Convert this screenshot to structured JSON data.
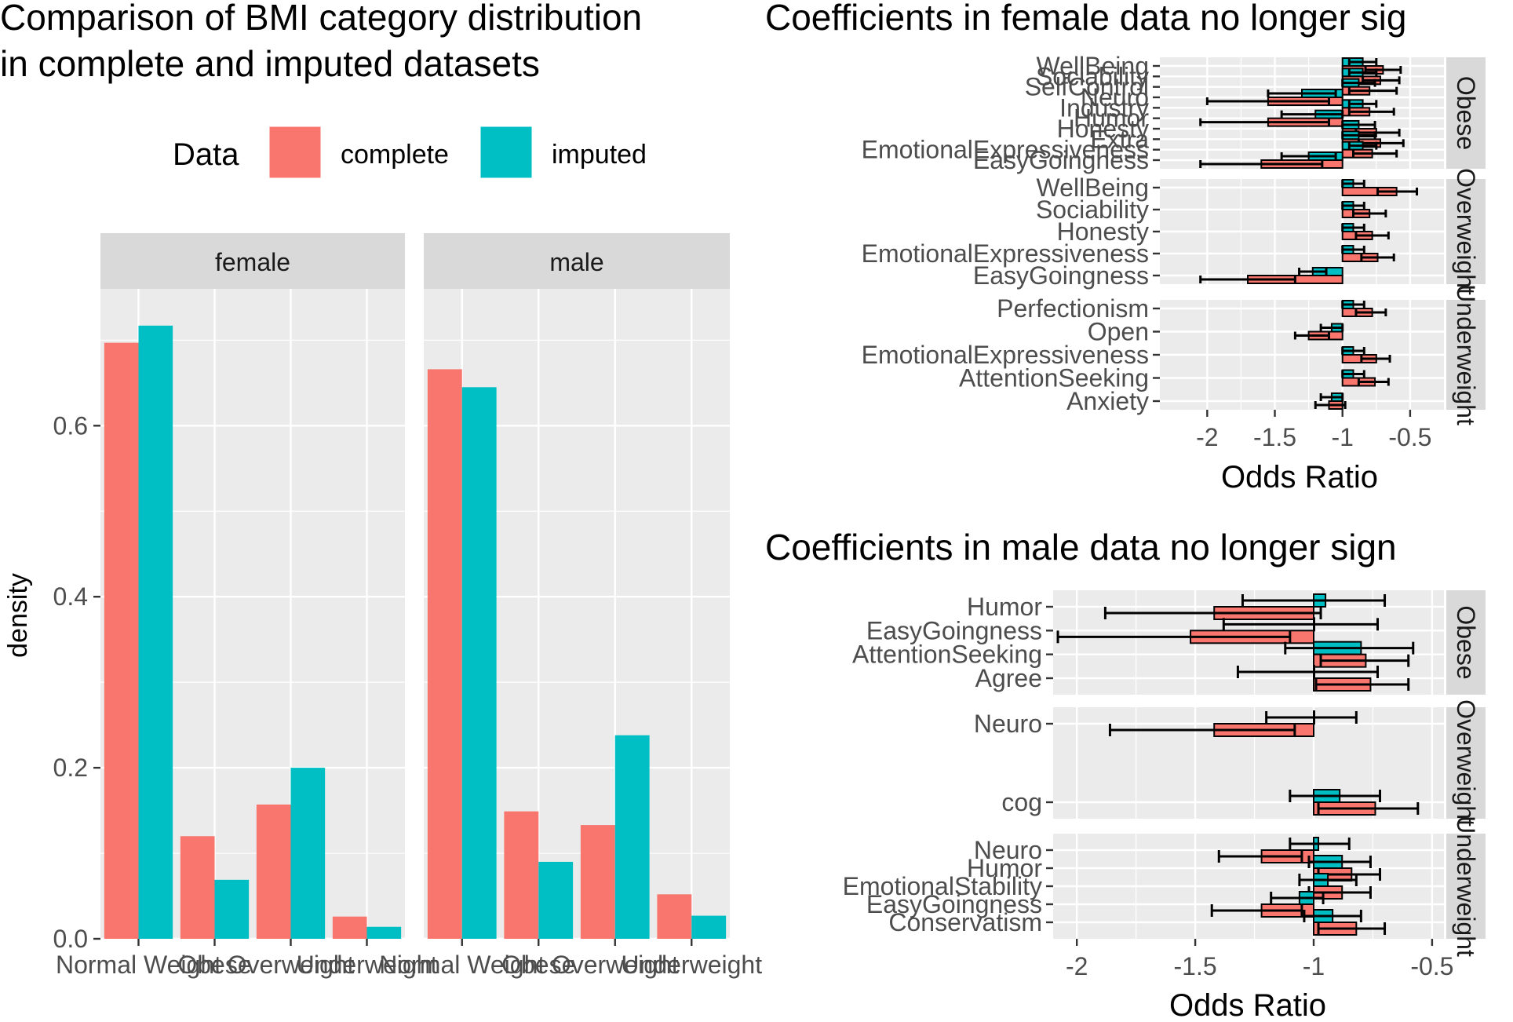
{
  "colors": {
    "complete": "#F8766D",
    "imputed": "#00BFC4",
    "panel_bg": "#EBEBEB",
    "strip_bg": "#D9D9D9",
    "grid": "#FFFFFF",
    "axis_text": "#4D4D4D"
  },
  "chart_data": [
    {
      "type": "bar",
      "title": "Comparison of BMI category distribution in complete and imputed datasets",
      "title_lines": [
        "Comparison of BMI category distribution",
        "in complete and imputed datasets"
      ],
      "xlabel": "",
      "ylabel": "density",
      "legend": {
        "title": "Data",
        "position": "top",
        "entries": [
          "complete",
          "imputed"
        ]
      },
      "facets": [
        "female",
        "male"
      ],
      "categories": [
        "Normal Weight",
        "Obese",
        "Overweight",
        "Underweight"
      ],
      "ylim": [
        0,
        0.76
      ],
      "y_ticks": [
        "0.0",
        "0.2",
        "0.4",
        "0.6"
      ],
      "panels": [
        {
          "facet": "female",
          "series": [
            {
              "name": "complete",
              "values": [
                0.697,
                0.12,
                0.157,
                0.026
              ]
            },
            {
              "name": "imputed",
              "values": [
                0.717,
                0.069,
                0.2,
                0.014
              ]
            }
          ]
        },
        {
          "facet": "male",
          "series": [
            {
              "name": "complete",
              "values": [
                0.666,
                0.149,
                0.133,
                0.052
              ]
            },
            {
              "name": "imputed",
              "values": [
                0.645,
                0.09,
                0.238,
                0.027
              ]
            }
          ]
        }
      ]
    },
    {
      "type": "bar",
      "subtype": "horizontal-errorbar",
      "title": "Coefficients in female data no longer sig",
      "xlabel": "Odds Ratio",
      "xlim": [
        -2.35,
        -0.25
      ],
      "x_ticks": [
        -2,
        -1.5,
        -1,
        -0.5
      ],
      "x_tick_labels": [
        "-2",
        "-1.5",
        "-1",
        "-0.5"
      ],
      "base": -1,
      "facets": [
        {
          "strip": "Obese",
          "labels": [
            "WellBeing",
            "Sociability",
            "SelfControl",
            "Neuro",
            "Industry",
            "Humor",
            "Honesty",
            "Extra",
            "EmotionalExpressiveness",
            "EasyGoingness"
          ],
          "complete": [
            {
              "v": -0.7,
              "lo": -0.83,
              "hi": -0.57
            },
            {
              "v": -0.72,
              "lo": -0.85,
              "hi": -0.58
            },
            {
              "v": -0.8,
              "lo": -0.95,
              "hi": -0.6
            },
            {
              "v": -1.55,
              "lo": -2.0,
              "hi": -1.1
            },
            {
              "v": -0.8,
              "lo": -0.95,
              "hi": -0.62
            },
            {
              "v": -1.55,
              "lo": -2.05,
              "hi": -1.1
            },
            {
              "v": -0.75,
              "lo": -0.9,
              "hi": -0.58
            },
            {
              "v": -0.72,
              "lo": -0.88,
              "hi": -0.55
            },
            {
              "v": -0.78,
              "lo": -0.92,
              "hi": -0.6
            },
            {
              "v": -1.6,
              "lo": -2.05,
              "hi": -1.15
            }
          ],
          "imputed": [
            {
              "v": -0.85,
              "lo": -0.95,
              "hi": -0.75
            },
            {
              "v": -0.85,
              "lo": -0.95,
              "hi": -0.75
            },
            {
              "v": -0.88,
              "lo": -1.0,
              "hi": -0.76
            },
            {
              "v": -1.3,
              "lo": -1.55,
              "hi": -1.05
            },
            {
              "v": -0.85,
              "lo": -0.95,
              "hi": -0.75
            },
            {
              "v": -1.2,
              "lo": -1.45,
              "hi": -1.0
            },
            {
              "v": -0.88,
              "lo": -1.0,
              "hi": -0.76
            },
            {
              "v": -0.88,
              "lo": -1.0,
              "hi": -0.76
            },
            {
              "v": -0.85,
              "lo": -0.95,
              "hi": -0.75
            },
            {
              "v": -1.25,
              "lo": -1.45,
              "hi": -1.05
            }
          ]
        },
        {
          "strip": "Overweight",
          "labels": [
            "WellBeing",
            "Sociability",
            "Honesty",
            "EmotionalExpressiveness",
            "EasyGoingness"
          ],
          "complete": [
            {
              "v": -0.6,
              "lo": -0.74,
              "hi": -0.45
            },
            {
              "v": -0.8,
              "lo": -0.92,
              "hi": -0.68
            },
            {
              "v": -0.78,
              "lo": -0.9,
              "hi": -0.66
            },
            {
              "v": -0.74,
              "lo": -0.86,
              "hi": -0.62
            },
            {
              "v": -1.7,
              "lo": -2.05,
              "hi": -1.35
            }
          ],
          "imputed": [
            {
              "v": -0.92,
              "lo": -1.0,
              "hi": -0.84
            },
            {
              "v": -0.92,
              "lo": -1.0,
              "hi": -0.84
            },
            {
              "v": -0.92,
              "lo": -1.0,
              "hi": -0.84
            },
            {
              "v": -0.92,
              "lo": -1.0,
              "hi": -0.84
            },
            {
              "v": -1.22,
              "lo": -1.32,
              "hi": -1.12
            }
          ]
        },
        {
          "strip": "Underweight",
          "labels": [
            "Perfectionism",
            "Open",
            "EmotionalExpressiveness",
            "AttentionSeeking",
            "Anxiety"
          ],
          "complete": [
            {
              "v": -0.78,
              "lo": -0.9,
              "hi": -0.68
            },
            {
              "v": -1.25,
              "lo": -1.35,
              "hi": -1.1
            },
            {
              "v": -0.75,
              "lo": -0.86,
              "hi": -0.65
            },
            {
              "v": -0.76,
              "lo": -0.88,
              "hi": -0.66
            },
            {
              "v": -1.1,
              "lo": -1.2,
              "hi": -0.98
            }
          ],
          "imputed": [
            {
              "v": -0.92,
              "lo": -1.0,
              "hi": -0.84
            },
            {
              "v": -1.08,
              "lo": -1.16,
              "hi": -1.0
            },
            {
              "v": -0.92,
              "lo": -1.0,
              "hi": -0.84
            },
            {
              "v": -0.92,
              "lo": -1.0,
              "hi": -0.84
            },
            {
              "v": -1.08,
              "lo": -1.16,
              "hi": -1.0
            }
          ]
        }
      ]
    },
    {
      "type": "bar",
      "subtype": "horizontal-errorbar",
      "title": "Coefficients in male data no longer sign",
      "xlabel": "Odds Ratio",
      "xlim": [
        -2.1,
        -0.45
      ],
      "x_ticks": [
        -2,
        -1.5,
        -1,
        -0.5
      ],
      "x_tick_labels": [
        "-2",
        "-1.5",
        "-1",
        "-0.5"
      ],
      "base": -1,
      "facets": [
        {
          "strip": "Obese",
          "labels": [
            "Humor",
            "EasyGoingness",
            "AttentionSeeking",
            "Agree"
          ],
          "complete": [
            {
              "v": -1.42,
              "lo": -1.88,
              "hi": -0.97
            },
            {
              "v": -1.52,
              "lo": -2.08,
              "hi": -1.1
            },
            {
              "v": -0.78,
              "lo": -0.97,
              "hi": -0.6
            },
            {
              "v": -0.76,
              "lo": -0.99,
              "hi": -0.6
            }
          ],
          "imputed": [
            {
              "v": -0.95,
              "lo": -1.3,
              "hi": -0.7
            },
            {
              "v": -1.0,
              "lo": -1.38,
              "hi": -0.73
            },
            {
              "v": -0.8,
              "lo": -1.12,
              "hi": -0.58
            },
            {
              "v": -1.0,
              "lo": -1.32,
              "hi": -0.73
            }
          ]
        },
        {
          "strip": "Overweight",
          "labels": [
            "Neuro",
            "cog"
          ],
          "complete": [
            {
              "v": -1.42,
              "lo": -1.86,
              "hi": -1.08
            },
            {
              "v": -0.74,
              "lo": -0.98,
              "hi": -0.56
            }
          ],
          "imputed": [
            {
              "v": -1.0,
              "lo": -1.2,
              "hi": -0.82
            },
            {
              "v": -0.89,
              "lo": -1.1,
              "hi": -0.72
            }
          ]
        },
        {
          "strip": "Underweight",
          "labels": [
            "Neuro",
            "Humor",
            "EmotionalStability",
            "EasyGoingness",
            "Conservatism"
          ],
          "complete": [
            {
              "v": -1.22,
              "lo": -1.4,
              "hi": -1.05
            },
            {
              "v": -0.84,
              "lo": -0.98,
              "hi": -0.72
            },
            {
              "v": -0.88,
              "lo": -1.02,
              "hi": -0.76
            },
            {
              "v": -1.22,
              "lo": -1.43,
              "hi": -1.05
            },
            {
              "v": -0.82,
              "lo": -0.98,
              "hi": -0.7
            }
          ],
          "imputed": [
            {
              "v": -0.98,
              "lo": -1.1,
              "hi": -0.85
            },
            {
              "v": -0.88,
              "lo": -1.02,
              "hi": -0.76
            },
            {
              "v": -0.94,
              "lo": -1.06,
              "hi": -0.82
            },
            {
              "v": -1.06,
              "lo": -1.18,
              "hi": -0.96
            },
            {
              "v": -0.92,
              "lo": -1.04,
              "hi": -0.8
            }
          ]
        }
      ]
    }
  ]
}
